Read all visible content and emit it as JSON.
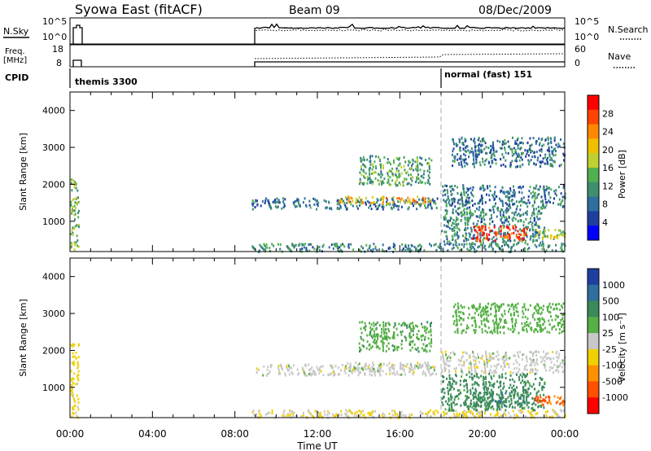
{
  "header": {
    "station": "Syowa East (fitACF)",
    "beam": "Beam 09",
    "date": "08/Dec/2009"
  },
  "noise_panel": {
    "left_label": "N.Sky",
    "left_ticks": [
      "10^5",
      "10^0"
    ],
    "right_ticks": [
      "10^5",
      "10^0"
    ],
    "right_label": "N.Search"
  },
  "freq_panel": {
    "left_label_line1": "Freq.",
    "left_label_line2": "[MHz]",
    "left_ticks": [
      "18",
      "8"
    ],
    "right_ticks": [
      "60",
      "0"
    ],
    "right_label": "Nave"
  },
  "cpid_panel": {
    "label": "CPID",
    "segments": [
      {
        "start_hour": 0.0,
        "name": "themis 3300"
      },
      {
        "start_hour": 18.0,
        "name": "normal (fast) 151"
      }
    ]
  },
  "time_axis": {
    "label": "Time UT",
    "ticks": [
      "00:00",
      "04:00",
      "08:00",
      "12:00",
      "16:00",
      "20:00",
      "00:00"
    ]
  },
  "range_axis": {
    "label": "Slant Range [km]",
    "ticks": [
      "1000",
      "2000",
      "3000",
      "4000"
    ]
  },
  "power_colorbar": {
    "label": "Power [dB]",
    "ticks": [
      "4",
      "8",
      "12",
      "16",
      "20",
      "24",
      "28"
    ],
    "colors": [
      "#0000ff",
      "#1f3f9f",
      "#2f6fa0",
      "#3f8f6f",
      "#50b050",
      "#c0d030",
      "#f0c000",
      "#ff8800",
      "#ff4400",
      "#ff0000"
    ]
  },
  "velocity_colorbar": {
    "label": "Velocity [m s⁻¹]",
    "ticks": [
      "1000",
      "500",
      "100",
      "25",
      "-25",
      "-100",
      "-500",
      "-1000"
    ],
    "colors": [
      "#1f3fa0",
      "#2f6fa0",
      "#3a8a5a",
      "#55b045",
      "#c8c8c8",
      "#f0d000",
      "#ff9000",
      "#ff5000",
      "#ff0000"
    ]
  },
  "chart_data": [
    {
      "type": "heatmap",
      "title": "Power",
      "xlabel": "Time UT",
      "ylabel": "Slant Range [km]",
      "xlim_hours": [
        0,
        24
      ],
      "ylim_km": [
        180,
        4500
      ],
      "colorbar_label": "Power [dB]",
      "clim": [
        0,
        30
      ],
      "cpid_change_hour": 18.0,
      "regions": [
        {
          "t": [
            0.0,
            0.4
          ],
          "r": [
            200,
            2200
          ],
          "value": 14
        },
        {
          "t": [
            8.8,
            17.8
          ],
          "r": [
            1350,
            1650
          ],
          "value": 8
        },
        {
          "t": [
            13.0,
            17.5
          ],
          "r": [
            1500,
            1700
          ],
          "value": 20
        },
        {
          "t": [
            8.8,
            24.0
          ],
          "r": [
            200,
            420
          ],
          "value": 10
        },
        {
          "t": [
            14.0,
            17.5
          ],
          "r": [
            2000,
            2800
          ],
          "value": 12
        },
        {
          "t": [
            18.0,
            24.0
          ],
          "r": [
            1400,
            2000
          ],
          "value": 8
        },
        {
          "t": [
            18.5,
            24.0
          ],
          "r": [
            2500,
            3300
          ],
          "value": 8
        },
        {
          "t": [
            18.0,
            23.0
          ],
          "r": [
            400,
            1400
          ],
          "value": 10
        },
        {
          "t": [
            19.5,
            22.2
          ],
          "r": [
            500,
            900
          ],
          "value": 27
        },
        {
          "t": [
            22.5,
            24.0
          ],
          "r": [
            550,
            800
          ],
          "value": 16
        }
      ]
    },
    {
      "type": "heatmap",
      "title": "Velocity",
      "xlabel": "Time UT",
      "ylabel": "Slant Range [km]",
      "xlim_hours": [
        0,
        24
      ],
      "ylim_km": [
        180,
        4500
      ],
      "colorbar_label": "Velocity [m s⁻¹]",
      "clim": [
        -1000,
        1000
      ],
      "cpid_change_hour": 18.0,
      "regions": [
        {
          "t": [
            0.0,
            0.4
          ],
          "r": [
            200,
            2200
          ],
          "value": -50
        },
        {
          "t": [
            8.8,
            17.8
          ],
          "r": [
            1350,
            1650
          ],
          "value": 0
        },
        {
          "t": [
            13.0,
            17.5
          ],
          "r": [
            1500,
            1700
          ],
          "value": 0
        },
        {
          "t": [
            8.8,
            24.0
          ],
          "r": [
            200,
            420
          ],
          "value": -30
        },
        {
          "t": [
            14.0,
            17.5
          ],
          "r": [
            2000,
            2800
          ],
          "value": 80
        },
        {
          "t": [
            18.0,
            24.0
          ],
          "r": [
            1400,
            2000
          ],
          "value": 0
        },
        {
          "t": [
            18.5,
            24.0
          ],
          "r": [
            2500,
            3300
          ],
          "value": 60
        },
        {
          "t": [
            18.0,
            23.0
          ],
          "r": [
            400,
            1400
          ],
          "value": 150
        },
        {
          "t": [
            19.5,
            22.2
          ],
          "r": [
            500,
            900
          ],
          "value": 400
        },
        {
          "t": [
            22.5,
            24.0
          ],
          "r": [
            550,
            800
          ],
          "value": -600
        }
      ]
    }
  ]
}
